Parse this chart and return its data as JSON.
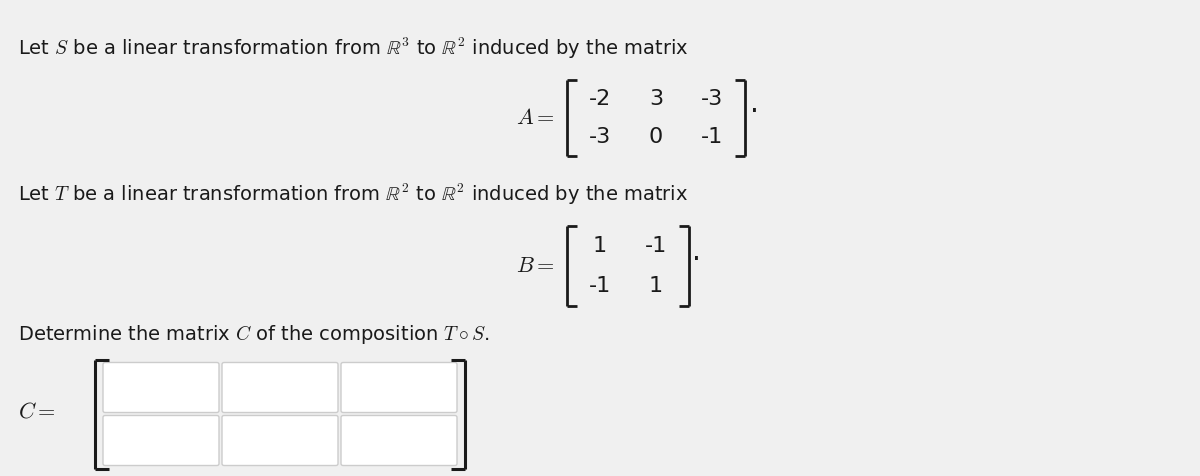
{
  "bg_color": "#f0f0f0",
  "text_color": "#1a1a1a",
  "line1": "Let $S$ be a linear transformation from $\\mathbb{R}^3$ to $\\mathbb{R}^2$ induced by the matrix",
  "line2": "Let $T$ be a linear transformation from $\\mathbb{R}^2$ to $\\mathbb{R}^2$ induced by the matrix",
  "line3": "Determine the matrix $C$ of the composition $T \\circ S$.",
  "A_matrix": [
    [
      -2,
      3,
      -3
    ],
    [
      -3,
      0,
      -1
    ]
  ],
  "B_matrix": [
    [
      1,
      -1
    ],
    [
      -1,
      1
    ]
  ],
  "C_rows": 2,
  "C_cols": 3,
  "font_size_text": 14,
  "font_size_matrix": 16,
  "font_size_label": 16
}
